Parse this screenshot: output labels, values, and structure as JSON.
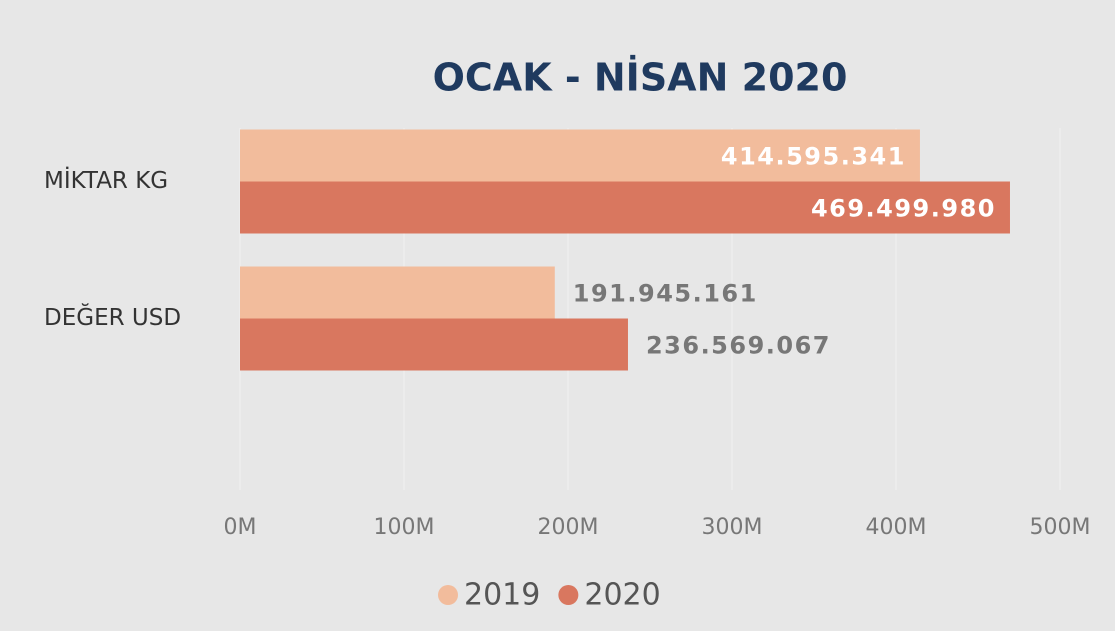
{
  "chart_data": {
    "type": "hbar",
    "title": "OCAK - NİSAN 2020",
    "categories": [
      "MİKTAR KG",
      "DEĞER USD"
    ],
    "series": [
      {
        "name": "2019",
        "color": "#f2bc9c",
        "values": [
          414595341,
          191945161
        ],
        "value_labels": [
          "414.595.341",
          "191.945.161"
        ]
      },
      {
        "name": "2020",
        "color": "#d9775f",
        "values": [
          469499980,
          236569067
        ],
        "value_labels": [
          "469.499.980",
          "236.569.067"
        ]
      }
    ],
    "xlim": [
      0,
      500000000
    ],
    "xticks": [
      {
        "value": 0,
        "label": "0M"
      },
      {
        "value": 100000000,
        "label": "100M"
      },
      {
        "value": 200000000,
        "label": "200M"
      },
      {
        "value": 300000000,
        "label": "300M"
      },
      {
        "value": 400000000,
        "label": "400M"
      },
      {
        "value": 500000000,
        "label": "500M"
      }
    ],
    "grid": true,
    "legend": "bottom"
  }
}
